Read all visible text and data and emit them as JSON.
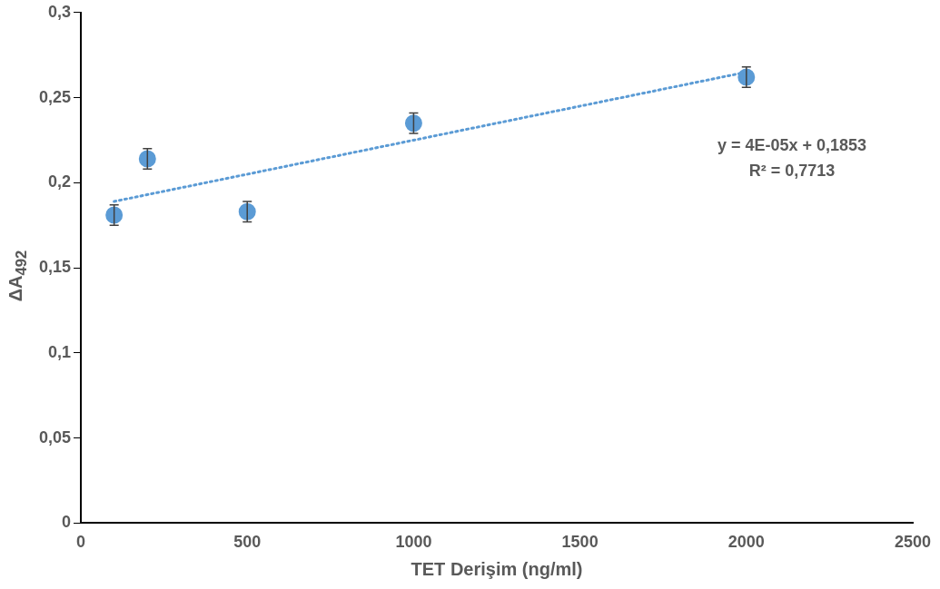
{
  "chart_data": {
    "type": "scatter",
    "xlabel": "TET Derişim (ng/ml)",
    "ylabel": "ΔA$_{492}$",
    "x": [
      100,
      200,
      500,
      1000,
      2000
    ],
    "series": [
      {
        "color": "#5b9bd5",
        "values": [
          0.181,
          0.214,
          0.183,
          0.235,
          0.262
        ],
        "errors": [
          0.006,
          0.006,
          0.006,
          0.006,
          0.006
        ]
      },
      {
        "type": "line",
        "color": "#5b9bd5",
        "x": [
          100,
          2000
        ],
        "values": [
          0.189,
          0.265
        ],
        "line_style": "dotted",
        "marker": "none"
      }
    ],
    "xlim": [
      0,
      2500
    ],
    "xticks": [
      0,
      500,
      1000,
      1500,
      2000,
      2500
    ],
    "ylim": [
      0,
      0.3
    ],
    "yticks": [
      0,
      {
        "value": 0.05,
        "label": "0,05"
      },
      {
        "value": 0.1,
        "label": "0,1"
      },
      {
        "value": 0.15,
        "label": "0,15"
      },
      {
        "value": 0.2,
        "label": "0,2"
      },
      {
        "value": 0.25,
        "label": "0,25"
      },
      {
        "value": 0.3,
        "label": "0,3"
      }
    ],
    "grid": false,
    "legend": false,
    "marker": "circle",
    "annotations": [
      "y = 4E-05x + 0,1853",
      "R² = 0,7713"
    ]
  }
}
